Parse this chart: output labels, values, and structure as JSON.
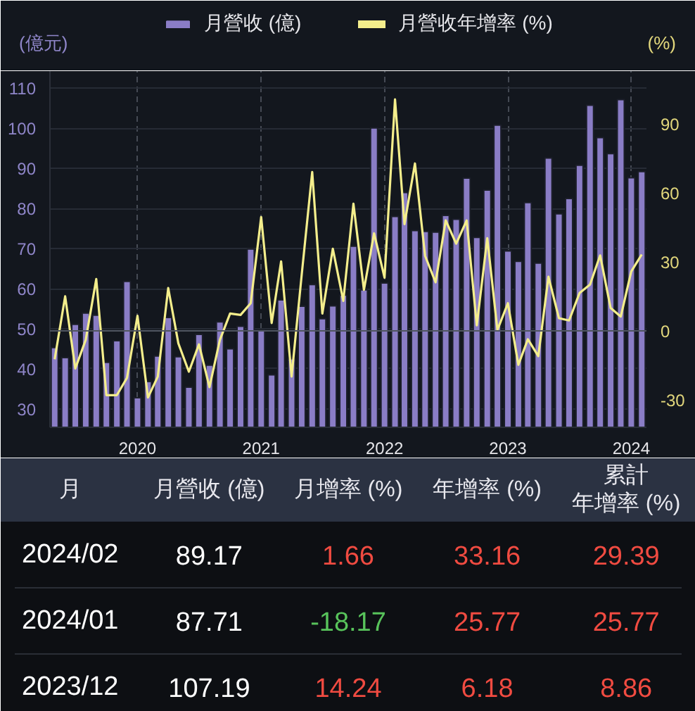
{
  "chart_data": [
    {
      "type": "bar",
      "x": [
        "2019-05",
        "2019-06",
        "2019-07",
        "2019-08",
        "2019-09",
        "2019-10",
        "2019-11",
        "2019-12",
        "2020-01",
        "2020-02",
        "2020-03",
        "2020-04",
        "2020-05",
        "2020-06",
        "2020-07",
        "2020-08",
        "2020-09",
        "2020-10",
        "2020-11",
        "2020-12",
        "2021-01",
        "2021-02",
        "2021-03",
        "2021-04",
        "2021-05",
        "2021-06",
        "2021-07",
        "2021-08",
        "2021-09",
        "2021-10",
        "2021-11",
        "2021-12",
        "2022-01",
        "2022-02",
        "2022-03",
        "2022-04",
        "2022-05",
        "2022-06",
        "2022-07",
        "2022-08",
        "2022-09",
        "2022-10",
        "2022-11",
        "2022-12",
        "2023-01",
        "2023-02",
        "2023-03",
        "2023-04",
        "2023-05",
        "2023-06",
        "2023-07",
        "2023-08",
        "2023-09",
        "2023-10",
        "2023-11",
        "2023-12",
        "2024-01",
        "2024-02"
      ],
      "series": [
        {
          "name": "月營收 (億)",
          "color": "#8a7dc6",
          "values": [
            45.3,
            42.8,
            51.1,
            53.9,
            53.4,
            41.6,
            47.0,
            61.8,
            32.8,
            36.8,
            43.2,
            52.8,
            43.0,
            35.4,
            48.6,
            40.9,
            51.7,
            45.0,
            50.6,
            69.9,
            49.6,
            38.5,
            57.2,
            42.5,
            55.6,
            61.0,
            52.5,
            55.7,
            58.4,
            70.6,
            59.7,
            100.1,
            61.4,
            78.0,
            84.0,
            74.5,
            74.3,
            74.1,
            78.3,
            77.3,
            87.6,
            72.8,
            84.6,
            100.8,
            69.4,
            66.8,
            81.5,
            66.4,
            92.6,
            78.7,
            82.5,
            90.8,
            105.8,
            97.7,
            93.7,
            107.2,
            87.7,
            89.2
          ]
        },
        {
          "name": "月營收年增率 (%)",
          "type": "line",
          "axis": "y2",
          "color": "#f4ee8c",
          "values": [
            -12.4,
            15.0,
            -16.4,
            -3.9,
            22.5,
            -28.0,
            -28.0,
            -20.5,
            6.5,
            -29.0,
            -20.0,
            18.6,
            -5.5,
            -17.8,
            -5.9,
            -24.5,
            -3.9,
            7.5,
            6.9,
            12.0,
            49.5,
            3.4,
            30.2,
            -19.9,
            24.5,
            69.1,
            7.5,
            35.7,
            13.0,
            55.3,
            17.8,
            42.4,
            23.1,
            100.7,
            46.4,
            72.8,
            32.6,
            21.1,
            48.0,
            37.9,
            48.0,
            2.4,
            40.3,
            0.4,
            12.0,
            -14.8,
            -3.7,
            -11.0,
            23.5,
            5.5,
            4.5,
            16.4,
            20.1,
            32.8,
            9.9,
            6.2,
            25.8,
            33.2
          ]
        }
      ],
      "ylabel": "(億元)",
      "y2label": "(%)",
      "xlim": [
        "2019-04-17",
        "2024-02-15"
      ],
      "xticks": [
        "2020",
        "2021",
        "2022",
        "2023",
        "2024"
      ],
      "ylim": [
        25.4,
        114.3
      ],
      "yticks": [
        30,
        40,
        50,
        60,
        70,
        80,
        90,
        100,
        110
      ],
      "y2lim": [
        -42,
        113
      ],
      "y2ticks": [
        -30,
        0,
        30,
        60,
        90
      ],
      "ref_lines": [
        {
          "axis": "y2",
          "value": 0
        }
      ],
      "grid": true,
      "legend": "top"
    },
    {
      "type": "other",
      "ylabel": "月",
      "categories": [
        "月營收 (億)",
        "月增率 (%)",
        "年增率 (%)",
        "累計年增率 (%)"
      ],
      "data_labels": true,
      "series": [
        {
          "name": "2024/02",
          "values": [
            89.17,
            1.66,
            33.16,
            29.39
          ]
        },
        {
          "name": "2024/01",
          "values": [
            87.71,
            -18.17,
            25.77,
            25.77
          ]
        },
        {
          "name": "2023/12",
          "values": [
            107.19,
            14.24,
            6.18,
            8.86
          ]
        }
      ]
    }
  ]
}
